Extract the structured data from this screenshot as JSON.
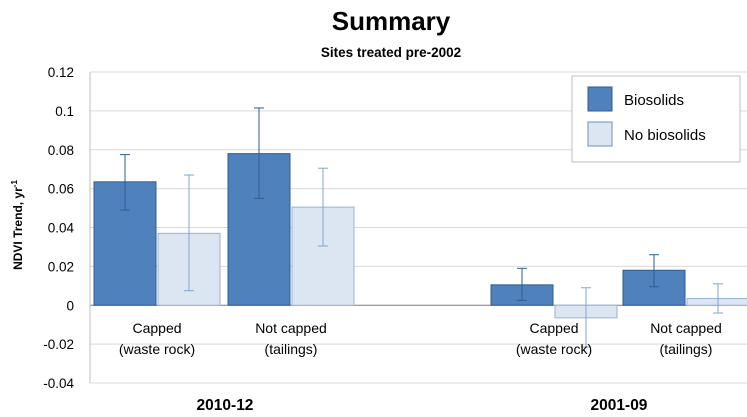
{
  "chart_data": {
    "type": "bar",
    "title": "Summary",
    "subtitle": "Sites treated pre-2002",
    "ylabel": "NDVI Trend, yr",
    "ylabel_sup": "-1",
    "ylim": [
      -0.04,
      0.12
    ],
    "yticks": [
      "0.12",
      "0.1",
      "0.08",
      "0.06",
      "0.04",
      "0.02",
      "0",
      "-0.02",
      "-0.04"
    ],
    "ytick_values": [
      0.12,
      0.1,
      0.08,
      0.06,
      0.04,
      0.02,
      0,
      -0.02,
      -0.04
    ],
    "grid": true,
    "legend_position": "top-right",
    "groups": [
      "2010-12",
      "2001-09"
    ],
    "categories": [
      {
        "line1": "Capped",
        "line2": "(waste rock)"
      },
      {
        "line1": "Not capped",
        "line2": "(tailings)"
      },
      {
        "line1": "Capped",
        "line2": "(waste rock)"
      },
      {
        "line1": "Not capped",
        "line2": "(tailings)"
      }
    ],
    "series": [
      {
        "name": "Biosolids",
        "color": "#4f81bd",
        "edge": "#2f5d8f",
        "values": [
          0.0635,
          0.078,
          0.0105,
          0.018
        ],
        "err_low": [
          0.049,
          0.055,
          0.0025,
          0.0095
        ],
        "err_high": [
          0.0775,
          0.1015,
          0.019,
          0.026
        ]
      },
      {
        "name": "No biosolids",
        "color": "#dce6f2",
        "edge": "#95b3d7",
        "values": [
          0.037,
          0.0505,
          -0.0065,
          0.0035
        ],
        "err_low": [
          0.0075,
          0.0305,
          -0.0215,
          -0.004
        ],
        "err_high": [
          0.067,
          0.0705,
          0.009,
          0.011
        ]
      }
    ]
  }
}
